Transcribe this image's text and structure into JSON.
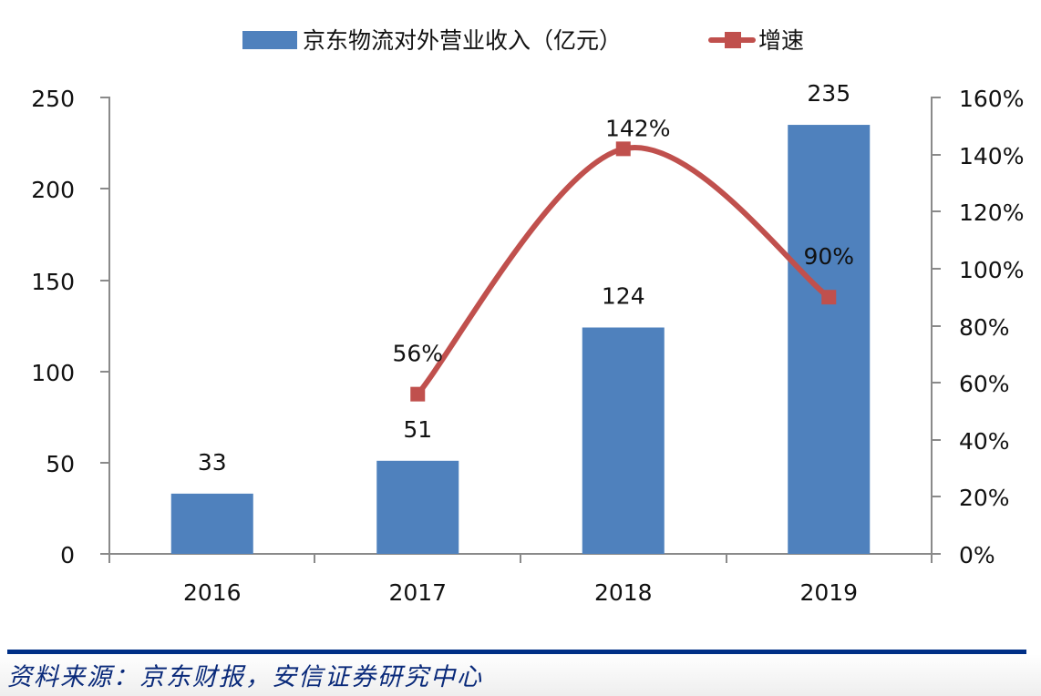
{
  "chart_data": {
    "type": "bar+line",
    "title": "",
    "categories": [
      "2016",
      "2017",
      "2018",
      "2019"
    ],
    "series": [
      {
        "name": "京东物流对外营业收入（亿元）",
        "type": "bar",
        "axis": "left",
        "color": "#4f81bd",
        "values": [
          33,
          51,
          124,
          235
        ],
        "labels": [
          "33",
          "51",
          "124",
          "235"
        ]
      },
      {
        "name": "增速",
        "type": "line",
        "axis": "right",
        "color": "#c0504d",
        "marker": "square",
        "smooth": true,
        "values": [
          null,
          56,
          142,
          90
        ],
        "labels": [
          "",
          "56%",
          "142%",
          "90%"
        ]
      }
    ],
    "left_axis": {
      "label": "",
      "ylim": [
        0,
        250
      ],
      "ticks": [
        "0",
        "50",
        "100",
        "150",
        "200",
        "250"
      ]
    },
    "right_axis": {
      "label": "",
      "ylim": [
        0,
        160
      ],
      "unit": "%",
      "ticks": [
        "0%",
        "20%",
        "40%",
        "60%",
        "80%",
        "100%",
        "120%",
        "140%",
        "160%"
      ]
    },
    "xlabel": "",
    "grid": false,
    "legend_position": "top"
  },
  "legend": {
    "bar_label": "京东物流对外营业收入（亿元）",
    "line_label": "增速"
  },
  "footer": {
    "source": "资料来源：京东财报，安信证券研究中心"
  }
}
